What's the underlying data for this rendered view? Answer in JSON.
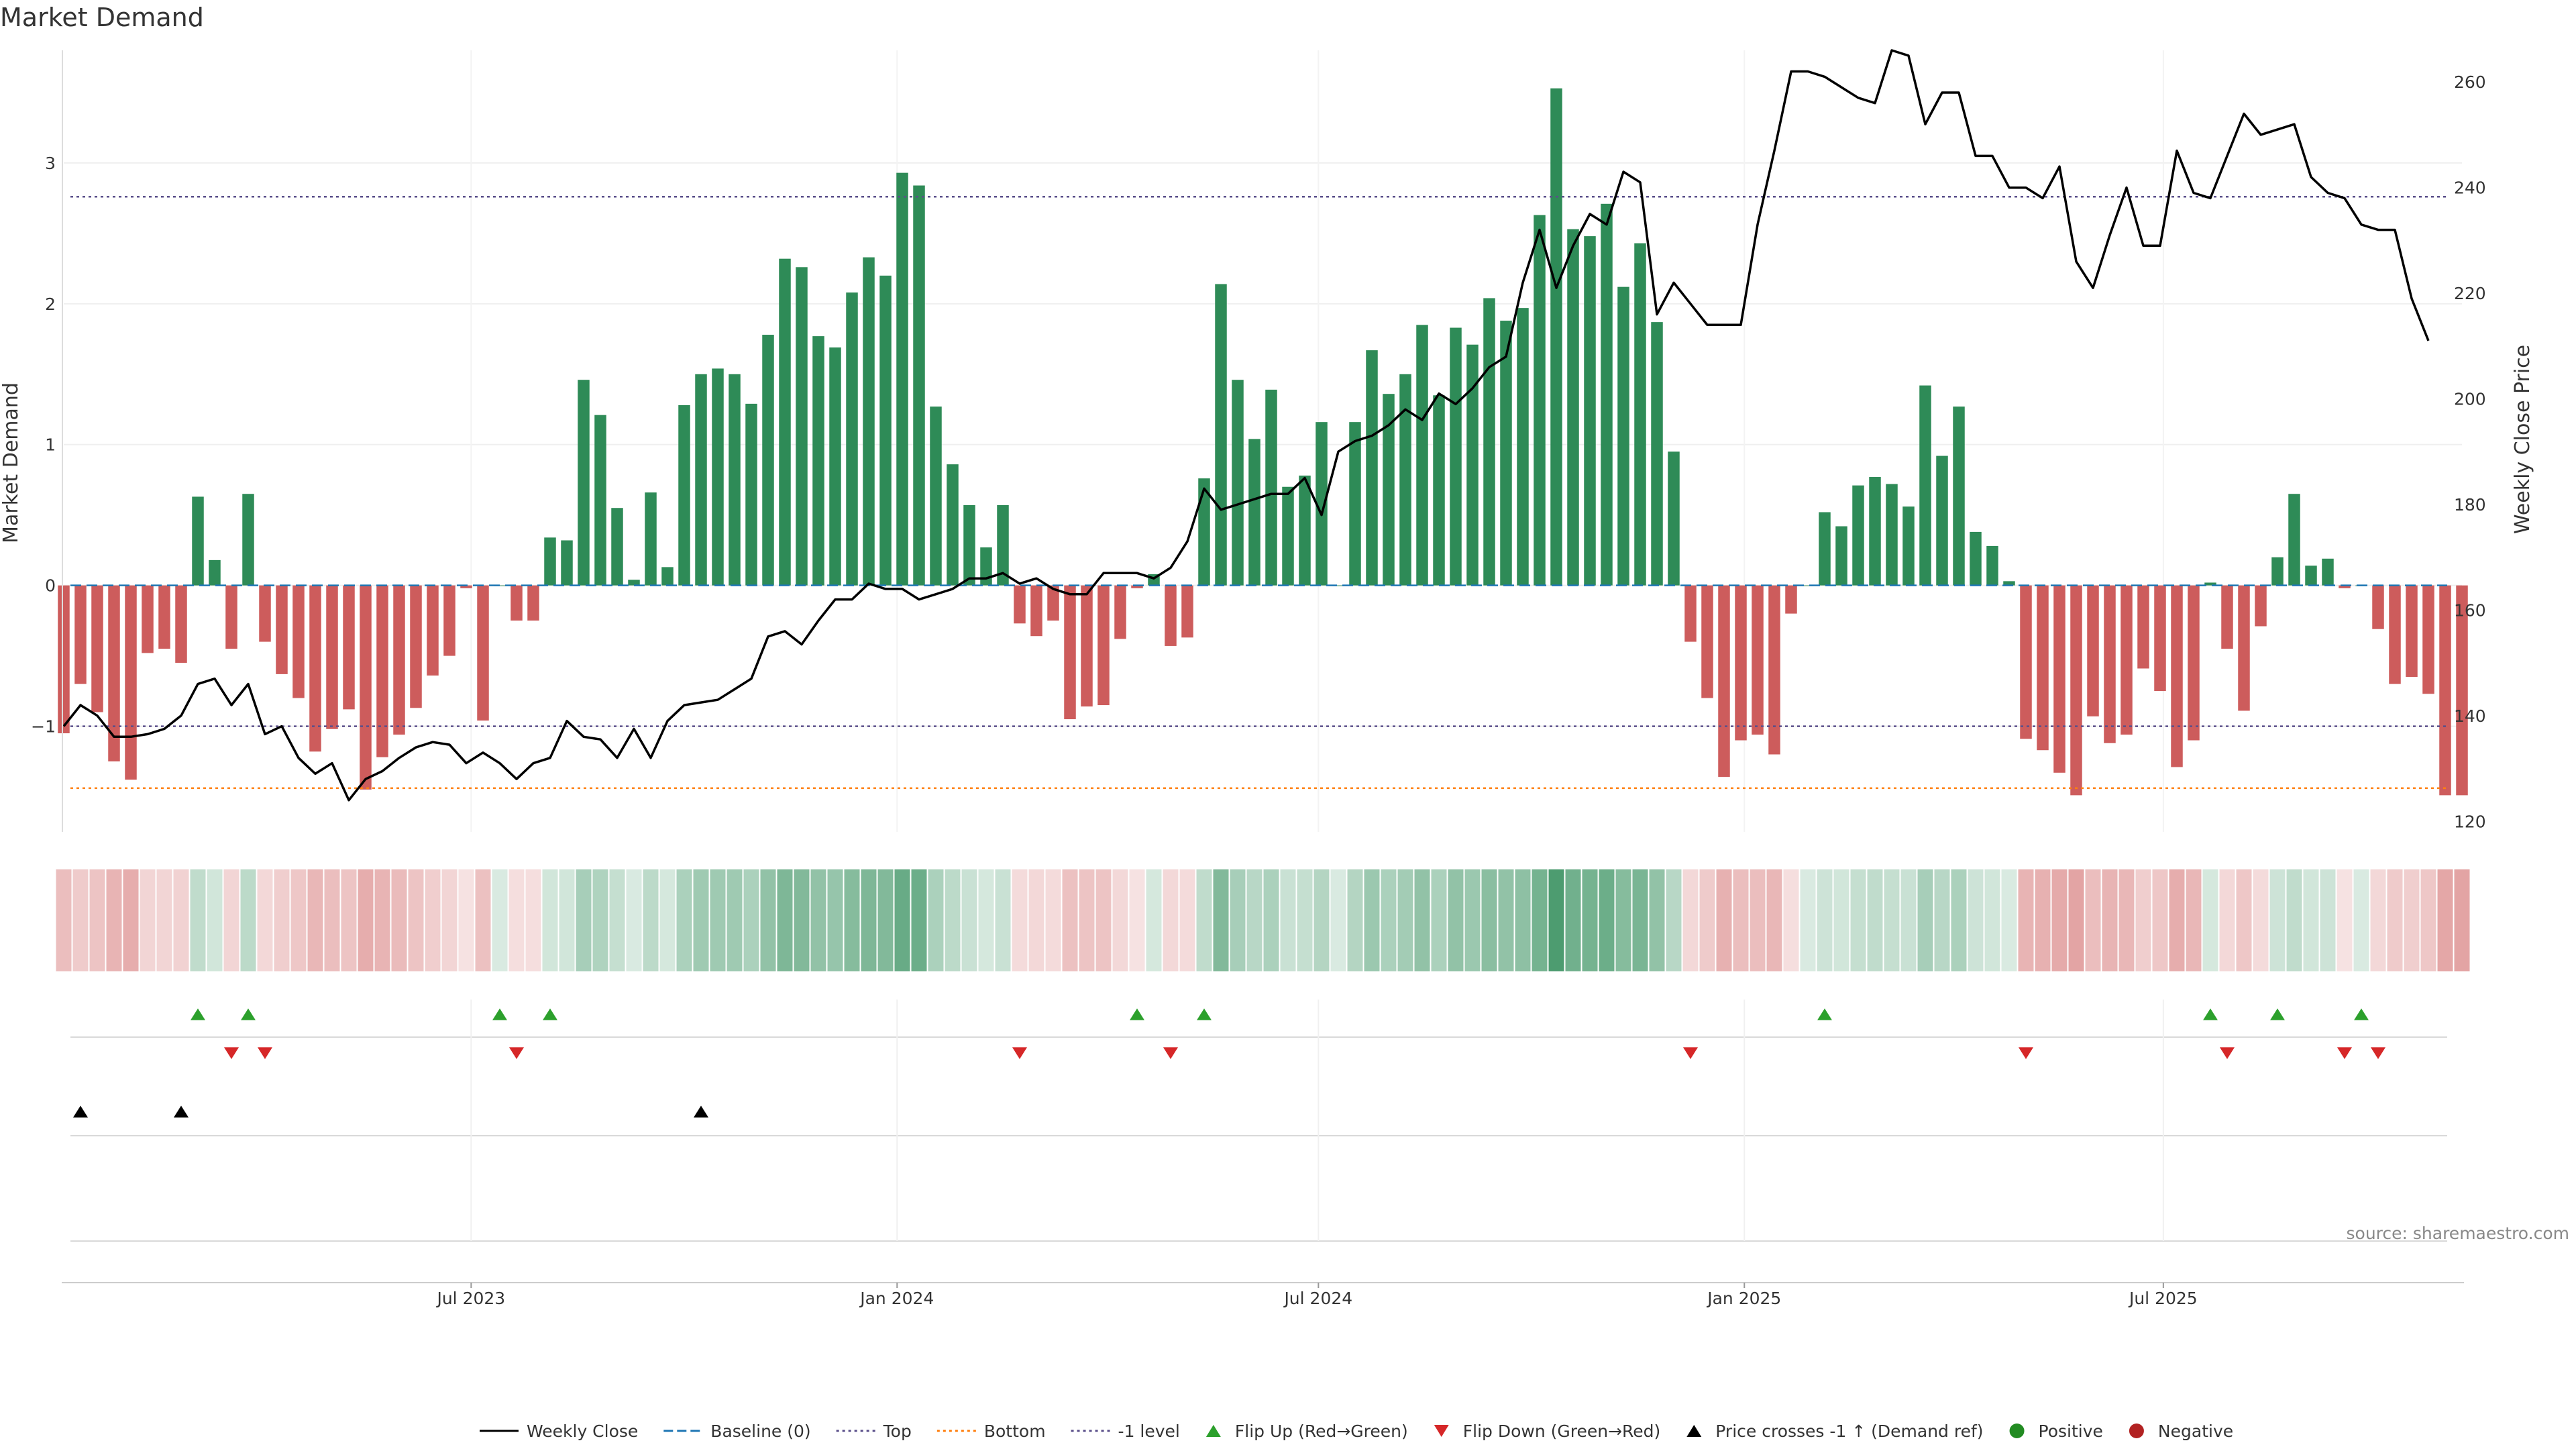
{
  "page": {
    "title": "Market Demand",
    "source": "source: sharemaestro.com"
  },
  "colors": {
    "positive": "#2e8b57",
    "negative": "#cd5c5c",
    "price_line": "#000000",
    "baseline": "#1f77b4",
    "top": "#5a4f8a",
    "bottom": "#ff7f0e",
    "minus1": "#5a4f8a",
    "flip_up": "#2ca02c",
    "flip_down": "#d62728",
    "cross": "#000000",
    "legend_positive": "#228b22",
    "legend_negative": "#b22222"
  },
  "chart_data": {
    "type": "bar",
    "title": "Market Demand",
    "ylabel": "Market Demand",
    "y2label": "Weekly Close Price",
    "ylim": [
      -1.75,
      3.8
    ],
    "y2lim": [
      118,
      266
    ],
    "yticks": [
      -1,
      0,
      1,
      2,
      3
    ],
    "ytick_labels": [
      "−1",
      "0",
      "1",
      "2",
      "3"
    ],
    "y2ticks": [
      120,
      140,
      160,
      180,
      200,
      220,
      240,
      260
    ],
    "x_start": "2023-01-06",
    "x_end": "2025-11-07",
    "x_step_days": 7,
    "xticks": [
      {
        "date": "2023-07-01",
        "label": "Jul 2023"
      },
      {
        "date": "2024-01-01",
        "label": "Jan 2024"
      },
      {
        "date": "2024-07-01",
        "label": "Jul 2024"
      },
      {
        "date": "2025-01-01",
        "label": "Jan 2025"
      },
      {
        "date": "2025-07-01",
        "label": "Jul 2025"
      }
    ],
    "top_level": 2.76,
    "bottom_level": -1.44,
    "minus1_level": -1,
    "demand": [
      -1.05,
      -0.7,
      -0.9,
      -1.25,
      -1.38,
      -0.48,
      -0.45,
      -0.55,
      0.63,
      0.18,
      -0.45,
      0.65,
      -0.4,
      -0.63,
      -0.8,
      -1.18,
      -1.02,
      -0.88,
      -1.45,
      -1.22,
      -1.06,
      -0.87,
      -0.64,
      -0.5,
      -0.02,
      -0.96,
      0.0,
      -0.25,
      -0.25,
      0.34,
      0.32,
      1.46,
      1.21,
      0.55,
      0.04,
      0.66,
      0.13,
      1.28,
      1.5,
      1.54,
      1.5,
      1.29,
      1.78,
      2.32,
      2.26,
      1.77,
      1.69,
      2.08,
      2.33,
      2.2,
      2.93,
      2.84,
      1.27,
      0.86,
      0.57,
      0.27,
      0.57,
      -0.27,
      -0.36,
      -0.25,
      -0.95,
      -0.86,
      -0.85,
      -0.38,
      -0.02,
      0.08,
      -0.43,
      -0.37,
      0.76,
      2.14,
      1.46,
      1.04,
      1.39,
      0.7,
      0.78,
      1.16,
      0.0,
      1.16,
      1.67,
      1.36,
      1.5,
      1.85,
      1.35,
      1.83,
      1.71,
      2.04,
      1.88,
      1.97,
      2.63,
      3.53,
      2.53,
      2.48,
      2.71,
      2.12,
      2.43,
      1.87,
      0.95,
      -0.4,
      -0.8,
      -1.36,
      -1.1,
      -1.06,
      -1.2,
      -0.2,
      0.0,
      0.52,
      0.42,
      0.71,
      0.77,
      0.72,
      0.56,
      1.42,
      0.92,
      1.27,
      0.38,
      0.28,
      0.03,
      -1.09,
      -1.17,
      -1.33,
      -1.49,
      -0.93,
      -1.12,
      -1.06,
      -0.59,
      -0.75,
      -1.29,
      -1.1,
      0.02,
      -0.45,
      -0.89,
      -0.29,
      0.2,
      0.65,
      0.14,
      0.19,
      -0.02,
      0.0,
      -0.31,
      -0.7,
      -0.65,
      -0.77,
      -1.49,
      -1.49
    ],
    "price": [
      138,
      142,
      140,
      136,
      136,
      136.5,
      137.5,
      140,
      146,
      147,
      142,
      146,
      136.5,
      138,
      132,
      129,
      131,
      124,
      128,
      129.5,
      132,
      134,
      135,
      134.5,
      131,
      133,
      131,
      128,
      131,
      132,
      139,
      136,
      135.5,
      132,
      137.5,
      132,
      139,
      142,
      142.5,
      143,
      145,
      147,
      155,
      156,
      153.5,
      158,
      162,
      162,
      165,
      164,
      164,
      162,
      163,
      164,
      166,
      166,
      167,
      165,
      166,
      164,
      163,
      163,
      167,
      167,
      167,
      166,
      168,
      173,
      183,
      179,
      180,
      181,
      182,
      182,
      185,
      178,
      190,
      192,
      193,
      195,
      198,
      196,
      201,
      199,
      202,
      206,
      208,
      222,
      232,
      221,
      229,
      235,
      233,
      243,
      241,
      216,
      222,
      218,
      214,
      214,
      214,
      233,
      247,
      262,
      262,
      261,
      259,
      257,
      256,
      266,
      265,
      252,
      258,
      258,
      246,
      246,
      240,
      240,
      238,
      244,
      226,
      221,
      231,
      240,
      229,
      229,
      247,
      239,
      238,
      246,
      254,
      250,
      251,
      252,
      242,
      239,
      238,
      233,
      232,
      232,
      219,
      211
    ],
    "heat_alpha": [
      0.4,
      0.32,
      0.36,
      0.46,
      0.5,
      0.26,
      0.26,
      0.28,
      0.3,
      0.22,
      0.26,
      0.32,
      0.24,
      0.3,
      0.34,
      0.44,
      0.4,
      0.36,
      0.5,
      0.46,
      0.42,
      0.36,
      0.3,
      0.26,
      0.18,
      0.38,
      0.18,
      0.2,
      0.2,
      0.22,
      0.22,
      0.42,
      0.38,
      0.28,
      0.18,
      0.32,
      0.2,
      0.4,
      0.46,
      0.46,
      0.46,
      0.4,
      0.52,
      0.62,
      0.6,
      0.52,
      0.5,
      0.58,
      0.62,
      0.6,
      0.72,
      0.7,
      0.4,
      0.32,
      0.26,
      0.2,
      0.26,
      0.22,
      0.24,
      0.22,
      0.38,
      0.36,
      0.36,
      0.24,
      0.18,
      0.2,
      0.24,
      0.22,
      0.3,
      0.6,
      0.42,
      0.34,
      0.4,
      0.26,
      0.28,
      0.36,
      0.18,
      0.36,
      0.48,
      0.4,
      0.44,
      0.52,
      0.4,
      0.52,
      0.48,
      0.56,
      0.52,
      0.54,
      0.66,
      0.85,
      0.68,
      0.66,
      0.7,
      0.58,
      0.64,
      0.52,
      0.34,
      0.24,
      0.32,
      0.48,
      0.4,
      0.4,
      0.44,
      0.2,
      0.18,
      0.24,
      0.22,
      0.28,
      0.3,
      0.28,
      0.26,
      0.42,
      0.34,
      0.4,
      0.24,
      0.22,
      0.18,
      0.46,
      0.48,
      0.52,
      0.56,
      0.4,
      0.46,
      0.44,
      0.3,
      0.34,
      0.5,
      0.44,
      0.2,
      0.24,
      0.34,
      0.22,
      0.24,
      0.3,
      0.22,
      0.24,
      0.18,
      0.18,
      0.24,
      0.32,
      0.3,
      0.34,
      0.54,
      0.56
    ],
    "flip_up_idx": [
      8,
      11,
      26,
      29,
      64,
      68,
      105,
      128,
      132,
      137
    ],
    "flip_down_idx": [
      10,
      12,
      27,
      57,
      66,
      97,
      117,
      129,
      136,
      138
    ],
    "cross_idx": [
      1,
      7,
      38
    ]
  },
  "legend": [
    {
      "label": "Weekly Close",
      "kind": "solid",
      "color": "#000000"
    },
    {
      "label": "Baseline (0)",
      "kind": "dashed",
      "color": "#1f77b4"
    },
    {
      "label": "Top",
      "kind": "dotted",
      "color": "#5a4f8a"
    },
    {
      "label": "Bottom",
      "kind": "dotted",
      "color": "#ff7f0e"
    },
    {
      "label": "-1 level",
      "kind": "dotted",
      "color": "#5a4f8a"
    },
    {
      "label": "Flip Up (Red→Green)",
      "kind": "tri-up",
      "color": "#2ca02c"
    },
    {
      "label": "Flip Down (Green→Red)",
      "kind": "tri-down",
      "color": "#d62728"
    },
    {
      "label": "Price crosses -1 ↑ (Demand ref)",
      "kind": "tri-up",
      "color": "#000000"
    },
    {
      "label": "Positive",
      "kind": "dot",
      "color": "#228b22"
    },
    {
      "label": "Negative",
      "kind": "dot",
      "color": "#b22222"
    }
  ]
}
